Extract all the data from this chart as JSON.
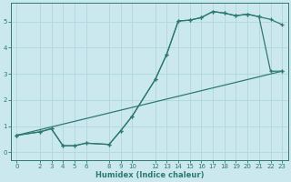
{
  "xlabel": "Humidex (Indice chaleur)",
  "bg_color": "#cbe8ee",
  "line_color": "#2e7b6e",
  "grid_color": "#b0d8de",
  "xlim": [
    -0.5,
    23.5
  ],
  "ylim": [
    -0.3,
    5.7
  ],
  "xticks": [
    0,
    2,
    3,
    4,
    5,
    6,
    8,
    9,
    10,
    12,
    13,
    14,
    15,
    16,
    17,
    18,
    19,
    20,
    21,
    22,
    23
  ],
  "yticks": [
    0,
    1,
    2,
    3,
    4,
    5
  ],
  "line1_x": [
    0,
    2,
    3,
    4,
    5,
    6,
    8,
    9,
    10,
    12,
    13,
    14,
    15,
    16,
    17,
    18,
    19,
    20,
    21,
    22,
    23
  ],
  "line1_y": [
    0.65,
    0.78,
    0.9,
    0.25,
    0.25,
    0.35,
    0.3,
    0.82,
    1.38,
    2.78,
    3.75,
    5.02,
    5.05,
    5.15,
    5.38,
    5.32,
    5.22,
    5.28,
    5.18,
    5.08,
    4.88
  ],
  "line2_x": [
    0,
    2,
    3,
    4,
    5,
    6,
    8,
    9,
    10,
    12,
    13,
    14,
    15,
    16,
    17,
    18,
    19,
    20,
    21,
    22,
    23
  ],
  "line2_y": [
    0.65,
    0.78,
    0.9,
    0.25,
    0.25,
    0.35,
    0.3,
    0.82,
    1.38,
    2.78,
    3.75,
    5.02,
    5.05,
    5.15,
    5.38,
    5.32,
    5.22,
    5.28,
    5.18,
    3.1,
    3.1
  ],
  "line3_x": [
    0,
    23
  ],
  "line3_y": [
    0.65,
    3.1
  ]
}
